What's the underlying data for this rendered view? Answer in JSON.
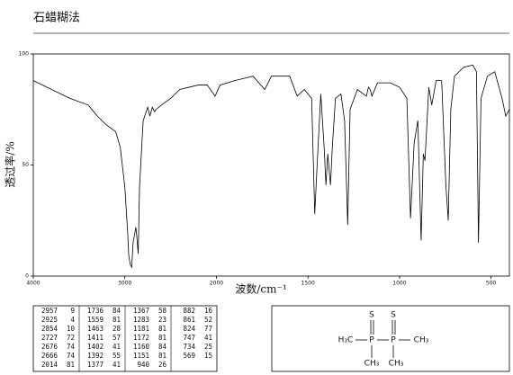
{
  "chart_data": {
    "type": "line",
    "title": "石蜡糊法",
    "x_label": "波数/cm⁻¹",
    "y_label": "透过率/%",
    "xlim": [
      4000,
      400
    ],
    "xbreak": 2000,
    "xticks": [
      4000,
      3000,
      2000,
      1500,
      1000,
      500
    ],
    "ylim": [
      0,
      100
    ],
    "yticks": [
      0,
      50,
      100
    ],
    "color": "#000000",
    "x": [
      4000,
      3800,
      3600,
      3400,
      3300,
      3200,
      3100,
      3050,
      3000,
      2970,
      2957,
      2940,
      2925,
      2910,
      2880,
      2870,
      2854,
      2840,
      2800,
      2750,
      2727,
      2700,
      2676,
      2660,
      2600,
      2500,
      2400,
      2300,
      2200,
      2100,
      2014,
      1980,
      1900,
      1800,
      1736,
      1700,
      1600,
      1559,
      1520,
      1480,
      1463,
      1450,
      1430,
      1411,
      1402,
      1392,
      1377,
      1367,
      1350,
      1320,
      1300,
      1283,
      1270,
      1230,
      1181,
      1170,
      1160,
      1151,
      1120,
      1050,
      1000,
      960,
      940,
      920,
      900,
      882,
      870,
      861,
      840,
      824,
      800,
      770,
      747,
      734,
      720,
      700,
      650,
      600,
      580,
      569,
      555,
      520,
      480,
      440,
      420,
      400
    ],
    "y": [
      88,
      84,
      80,
      77,
      72,
      68,
      65,
      58,
      40,
      20,
      9,
      5,
      4,
      15,
      22,
      18,
      10,
      40,
      70,
      76,
      72,
      76,
      74,
      75,
      77,
      80,
      84,
      85,
      86,
      86,
      81,
      86,
      88,
      90,
      84,
      90,
      90,
      81,
      84,
      80,
      28,
      50,
      82,
      57,
      41,
      55,
      41,
      58,
      80,
      82,
      70,
      23,
      75,
      84,
      81,
      85,
      84,
      81,
      87,
      87,
      85,
      80,
      26,
      60,
      70,
      16,
      55,
      52,
      85,
      77,
      88,
      88,
      41,
      25,
      75,
      90,
      94,
      95,
      92,
      15,
      80,
      90,
      92,
      80,
      72,
      75
    ]
  },
  "peak_table": {
    "columns": [
      [
        [
          "2957",
          "9"
        ],
        [
          "2925",
          "4"
        ],
        [
          "2854",
          "10"
        ],
        [
          "2727",
          "72"
        ],
        [
          "2676",
          "74"
        ],
        [
          "2666",
          "74"
        ],
        [
          "2014",
          "81"
        ]
      ],
      [
        [
          "1736",
          "84"
        ],
        [
          "1559",
          "81"
        ],
        [
          "1463",
          "28"
        ],
        [
          "1411",
          "57"
        ],
        [
          "1402",
          "41"
        ],
        [
          "1392",
          "55"
        ],
        [
          "1377",
          "41"
        ]
      ],
      [
        [
          "1367",
          "58"
        ],
        [
          "1283",
          "23"
        ],
        [
          "1181",
          "81"
        ],
        [
          "1172",
          "81"
        ],
        [
          "1160",
          "84"
        ],
        [
          "1151",
          "81"
        ],
        [
          "940",
          "26"
        ]
      ],
      [
        [
          "882",
          "16"
        ],
        [
          "861",
          "52"
        ],
        [
          "824",
          "77"
        ],
        [
          "747",
          "41"
        ],
        [
          "734",
          "25"
        ],
        [
          "569",
          "15"
        ]
      ]
    ]
  },
  "structure": {
    "nodes": [
      {
        "label": "S"
      },
      {
        "label": "S"
      },
      {
        "label": "H₃C"
      },
      {
        "label": "P"
      },
      {
        "label": "P"
      },
      {
        "label": "CH₃"
      },
      {
        "label": "CH₃"
      },
      {
        "label": "CH₃"
      }
    ]
  }
}
